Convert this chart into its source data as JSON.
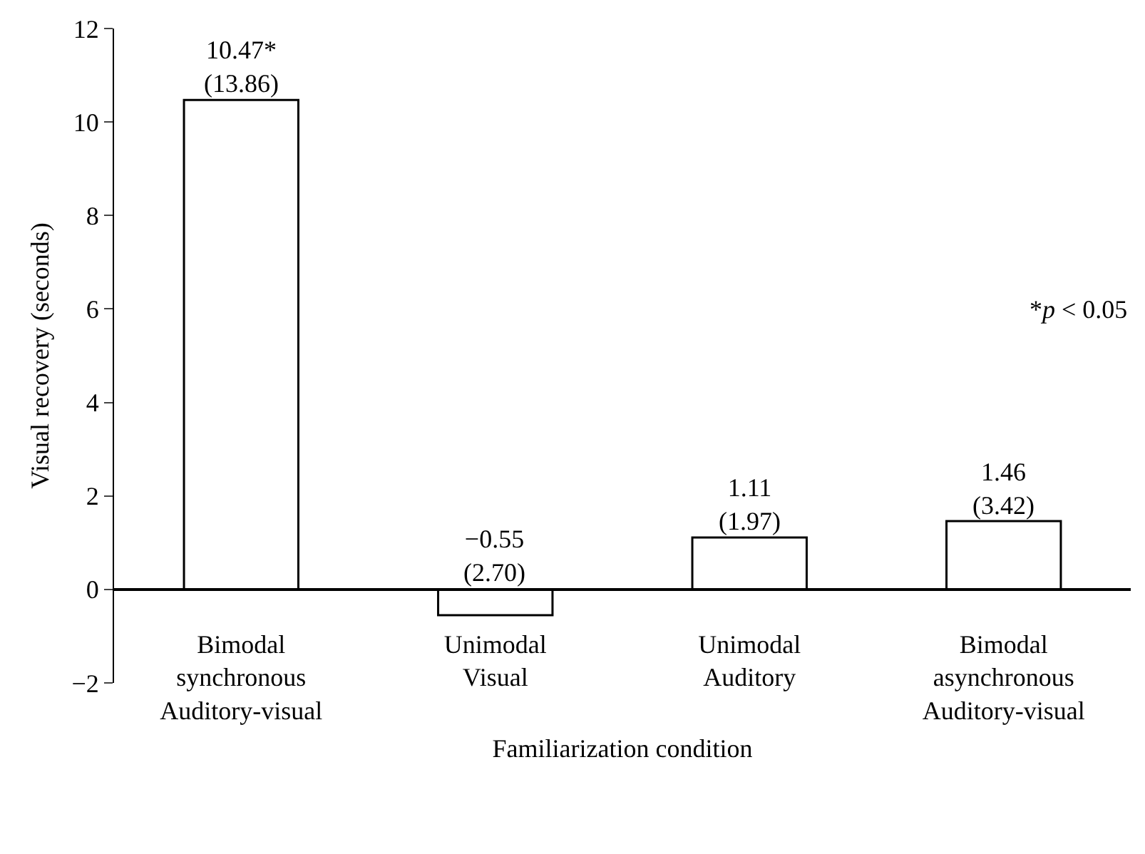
{
  "chart_data": {
    "type": "bar",
    "xlabel": "Familiarization condition",
    "ylabel": "Visual recovery (seconds)",
    "categories": [
      "Bimodal\nsynchronous\nAuditory-visual",
      "Unimodal\nVisual",
      "Unimodal\nAuditory",
      "Bimodal\nasynchronous\nAuditory-visual"
    ],
    "values": [
      10.47,
      -0.55,
      1.11,
      1.46
    ],
    "value_labels": [
      "10.47*\n(13.86)",
      "−0.55\n(2.70)",
      "1.11\n(1.97)",
      "1.46\n(3.42)"
    ],
    "color": "#ffffff",
    "ylim": [
      -2,
      12
    ],
    "yticks": [
      {
        "value": -2,
        "label": "−2"
      },
      0,
      2,
      4,
      6,
      8,
      10,
      12
    ],
    "grid": false,
    "legend": false,
    "annotations": [
      "*p < 0.05"
    ]
  }
}
